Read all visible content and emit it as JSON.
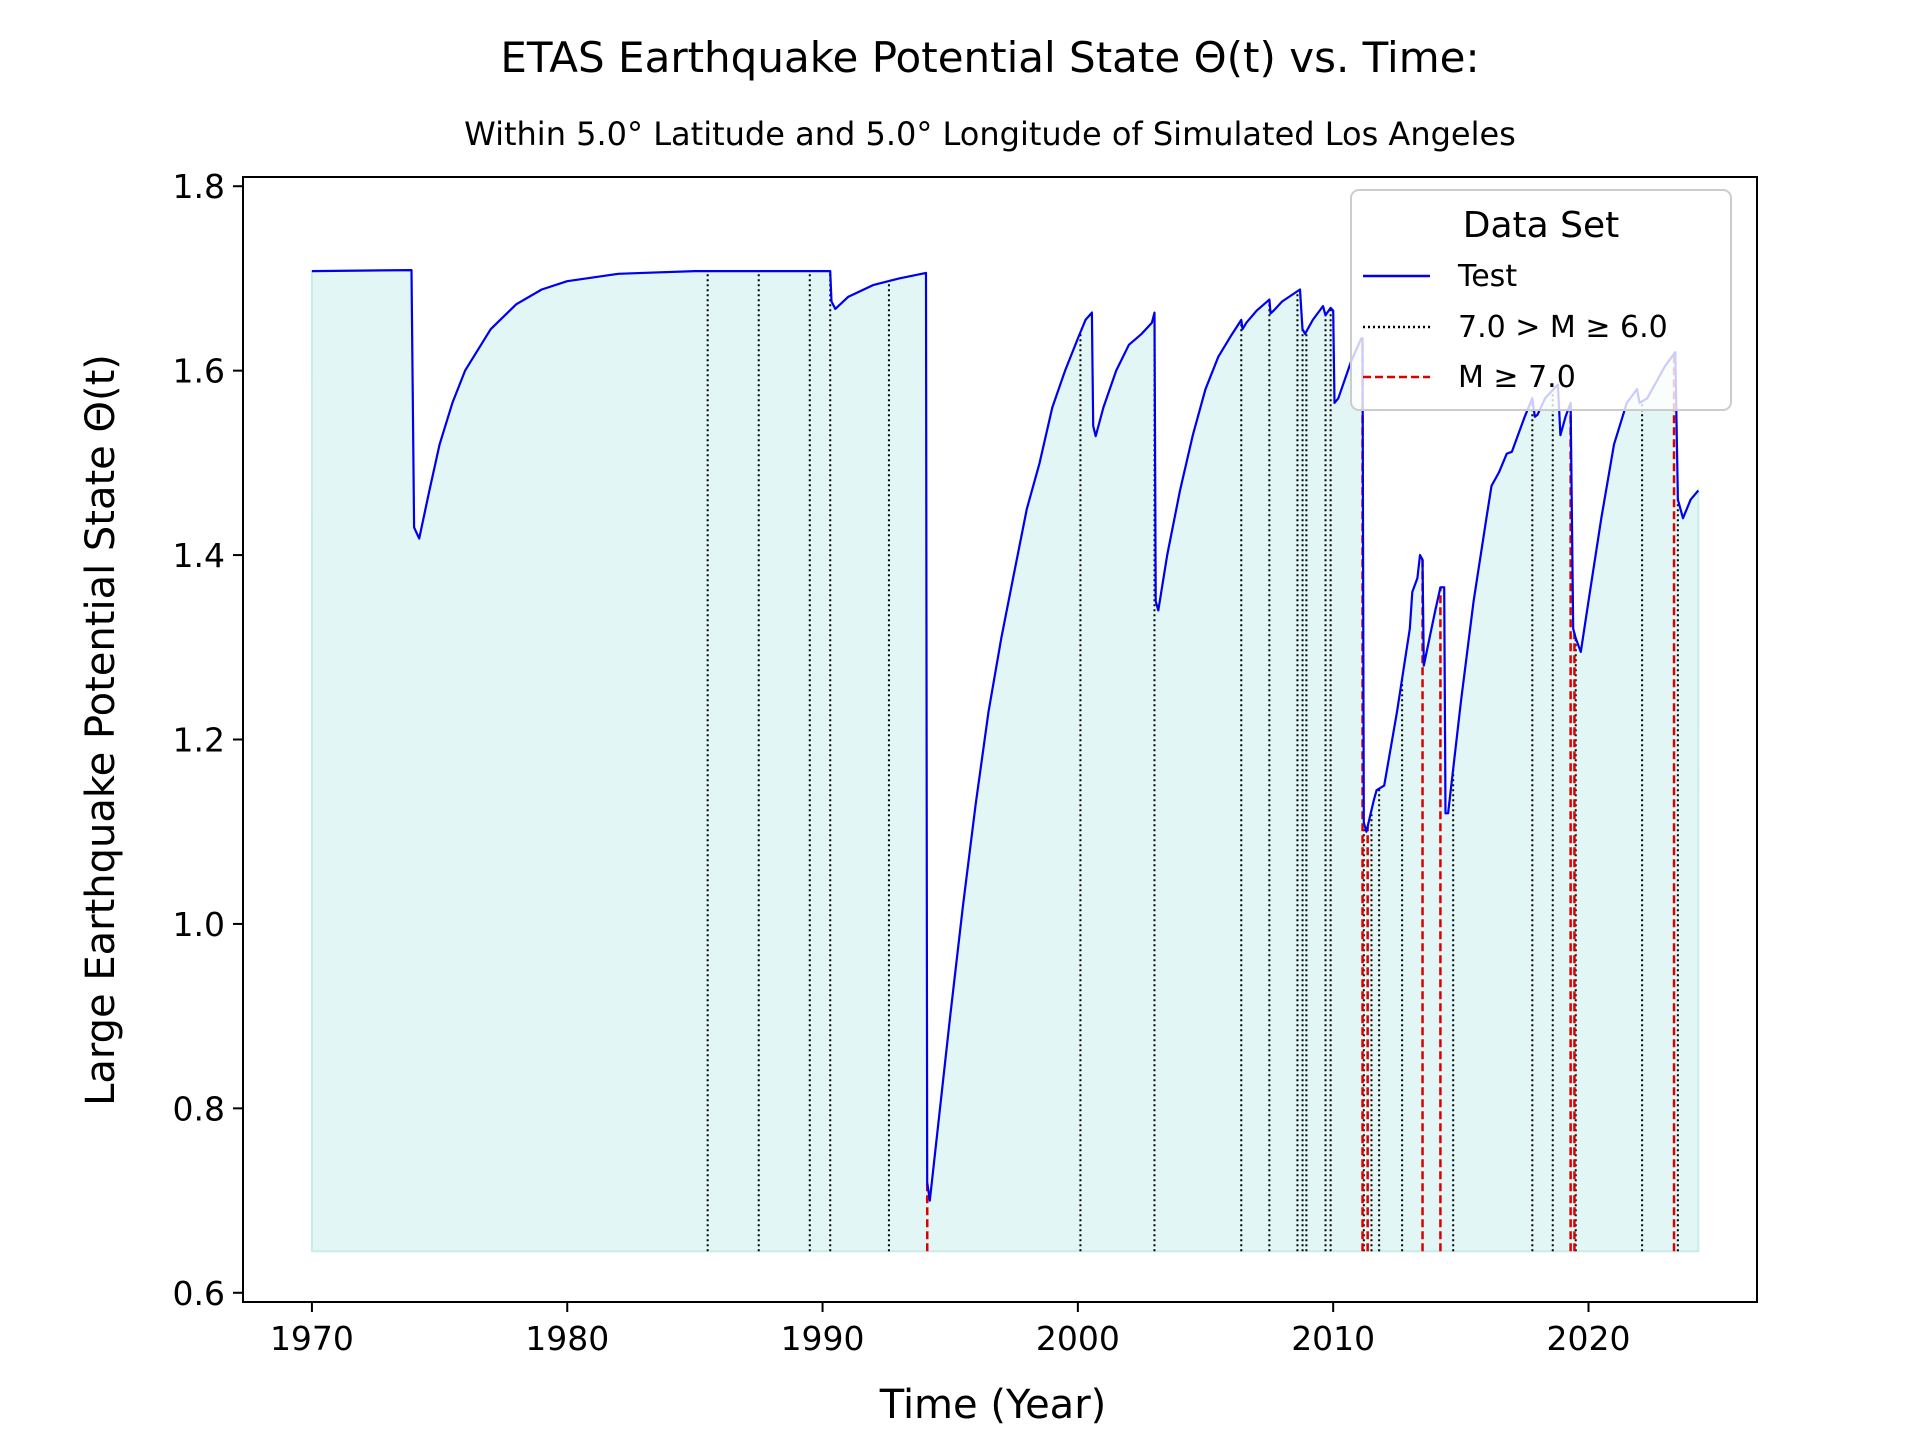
{
  "chart_data": {
    "type": "line",
    "title": "ETAS Earthquake Potential State Θ(t) vs. Time:",
    "subtitle": "Within 5.0° Latitude and 5.0° Longitude of Simulated Los Angeles",
    "xlabel": "Time (Year)",
    "ylabel": "Large Earthquake Potential State Θ(t)",
    "xlim": [
      1967.3,
      2026.6
    ],
    "ylim": [
      0.59,
      1.81
    ],
    "xticks": [
      1970,
      1980,
      1990,
      2000,
      2010,
      2020
    ],
    "yticks": [
      0.6,
      0.8,
      1.0,
      1.2,
      1.4,
      1.6,
      1.8
    ],
    "xtick_labels": [
      "1970",
      "1980",
      "1990",
      "2000",
      "2010",
      "2020"
    ],
    "ytick_labels": [
      "0.6",
      "0.8",
      "1.0",
      "1.2",
      "1.4",
      "1.6",
      "1.8"
    ],
    "fill_baseline": 0.645,
    "legend": {
      "title": "Data Set",
      "placement": "top-right",
      "entries": [
        "Test",
        "7.0  >  M  ≥  6.0",
        "M  ≥  7.0"
      ]
    },
    "colors": {
      "line": "#0000ee",
      "fill": "#e2f7f5",
      "fill_edge": "#c9ece8",
      "medium_events": "#000000",
      "large_events": "#dd0000"
    },
    "series": [
      {
        "name": "Test",
        "points": [
          [
            1970.0,
            1.708
          ],
          [
            1973.9,
            1.709
          ],
          [
            1974.0,
            1.43
          ],
          [
            1974.2,
            1.418
          ],
          [
            1974.6,
            1.47
          ],
          [
            1975.0,
            1.52
          ],
          [
            1975.5,
            1.565
          ],
          [
            1976.0,
            1.6
          ],
          [
            1977.0,
            1.645
          ],
          [
            1978.0,
            1.672
          ],
          [
            1979.0,
            1.688
          ],
          [
            1980.0,
            1.697
          ],
          [
            1982.0,
            1.705
          ],
          [
            1985.0,
            1.708
          ],
          [
            1989.9,
            1.708
          ],
          [
            1990.3,
            1.708
          ],
          [
            1990.35,
            1.675
          ],
          [
            1990.5,
            1.667
          ],
          [
            1991.0,
            1.68
          ],
          [
            1992.0,
            1.693
          ],
          [
            1993.0,
            1.7
          ],
          [
            1994.05,
            1.706
          ],
          [
            1994.1,
            0.72
          ],
          [
            1994.2,
            0.7
          ],
          [
            1994.6,
            0.8
          ],
          [
            1995.0,
            0.9
          ],
          [
            1995.5,
            1.02
          ],
          [
            1996.0,
            1.13
          ],
          [
            1996.5,
            1.23
          ],
          [
            1997.0,
            1.31
          ],
          [
            1997.5,
            1.38
          ],
          [
            1998.0,
            1.45
          ],
          [
            1998.5,
            1.5
          ],
          [
            1999.0,
            1.56
          ],
          [
            1999.5,
            1.6
          ],
          [
            2000.0,
            1.635
          ],
          [
            2000.3,
            1.655
          ],
          [
            2000.55,
            1.663
          ],
          [
            2000.6,
            1.54
          ],
          [
            2000.7,
            1.529
          ],
          [
            2001.0,
            1.56
          ],
          [
            2001.5,
            1.6
          ],
          [
            2002.0,
            1.628
          ],
          [
            2002.5,
            1.64
          ],
          [
            2002.9,
            1.652
          ],
          [
            2003.0,
            1.663
          ],
          [
            2003.05,
            1.35
          ],
          [
            2003.15,
            1.34
          ],
          [
            2003.5,
            1.4
          ],
          [
            2004.0,
            1.47
          ],
          [
            2004.5,
            1.53
          ],
          [
            2005.0,
            1.58
          ],
          [
            2005.5,
            1.615
          ],
          [
            2006.0,
            1.638
          ],
          [
            2006.4,
            1.655
          ],
          [
            2006.45,
            1.645
          ],
          [
            2006.6,
            1.652
          ],
          [
            2007.0,
            1.665
          ],
          [
            2007.5,
            1.677
          ],
          [
            2007.55,
            1.662
          ],
          [
            2007.7,
            1.666
          ],
          [
            2008.0,
            1.675
          ],
          [
            2008.7,
            1.688
          ],
          [
            2008.8,
            1.645
          ],
          [
            2008.9,
            1.64
          ],
          [
            2009.2,
            1.655
          ],
          [
            2009.6,
            1.67
          ],
          [
            2009.7,
            1.66
          ],
          [
            2009.9,
            1.668
          ],
          [
            2010.0,
            1.665
          ],
          [
            2010.05,
            1.565
          ],
          [
            2010.2,
            1.57
          ],
          [
            2010.7,
            1.61
          ],
          [
            2011.1,
            1.635
          ],
          [
            2011.15,
            1.635
          ],
          [
            2011.2,
            1.11
          ],
          [
            2011.3,
            1.1
          ],
          [
            2011.6,
            1.135
          ],
          [
            2011.7,
            1.145
          ],
          [
            2012.0,
            1.15
          ],
          [
            2012.5,
            1.23
          ],
          [
            2013.0,
            1.32
          ],
          [
            2013.1,
            1.36
          ],
          [
            2013.3,
            1.375
          ],
          [
            2013.4,
            1.4
          ],
          [
            2013.5,
            1.395
          ],
          [
            2013.55,
            1.28
          ],
          [
            2013.7,
            1.3
          ],
          [
            2014.0,
            1.34
          ],
          [
            2014.2,
            1.365
          ],
          [
            2014.35,
            1.365
          ],
          [
            2014.4,
            1.12
          ],
          [
            2014.5,
            1.12
          ],
          [
            2015.0,
            1.24
          ],
          [
            2015.5,
            1.35
          ],
          [
            2016.0,
            1.44
          ],
          [
            2016.2,
            1.475
          ],
          [
            2016.5,
            1.49
          ],
          [
            2016.8,
            1.51
          ],
          [
            2017.0,
            1.512
          ],
          [
            2017.5,
            1.55
          ],
          [
            2017.8,
            1.57
          ],
          [
            2017.9,
            1.55
          ],
          [
            2018.0,
            1.552
          ],
          [
            2018.3,
            1.57
          ],
          [
            2018.8,
            1.585
          ],
          [
            2018.9,
            1.53
          ],
          [
            2019.1,
            1.55
          ],
          [
            2019.3,
            1.565
          ],
          [
            2019.4,
            1.32
          ],
          [
            2019.5,
            1.31
          ],
          [
            2019.7,
            1.295
          ],
          [
            2020.0,
            1.35
          ],
          [
            2020.5,
            1.44
          ],
          [
            2021.0,
            1.52
          ],
          [
            2021.5,
            1.565
          ],
          [
            2021.9,
            1.58
          ],
          [
            2022.0,
            1.565
          ],
          [
            2022.3,
            1.57
          ],
          [
            2023.0,
            1.605
          ],
          [
            2023.4,
            1.62
          ],
          [
            2023.5,
            1.46
          ],
          [
            2023.7,
            1.44
          ],
          [
            2024.0,
            1.46
          ],
          [
            2024.3,
            1.47
          ]
        ]
      }
    ],
    "events_medium": [
      1985.5,
      1987.5,
      1989.5,
      1990.3,
      1992.6,
      2000.1,
      2003.0,
      2006.4,
      2007.5,
      2008.6,
      2008.8,
      2008.95,
      2009.7,
      2009.9,
      2011.2,
      2011.5,
      2011.8,
      2012.7,
      2014.7,
      2017.8,
      2018.6,
      2019.5,
      2022.1,
      2023.5
    ],
    "events_large": [
      1994.1,
      2011.15,
      2011.35,
      2013.5,
      2014.2,
      2019.3,
      2019.45,
      2023.35
    ]
  }
}
